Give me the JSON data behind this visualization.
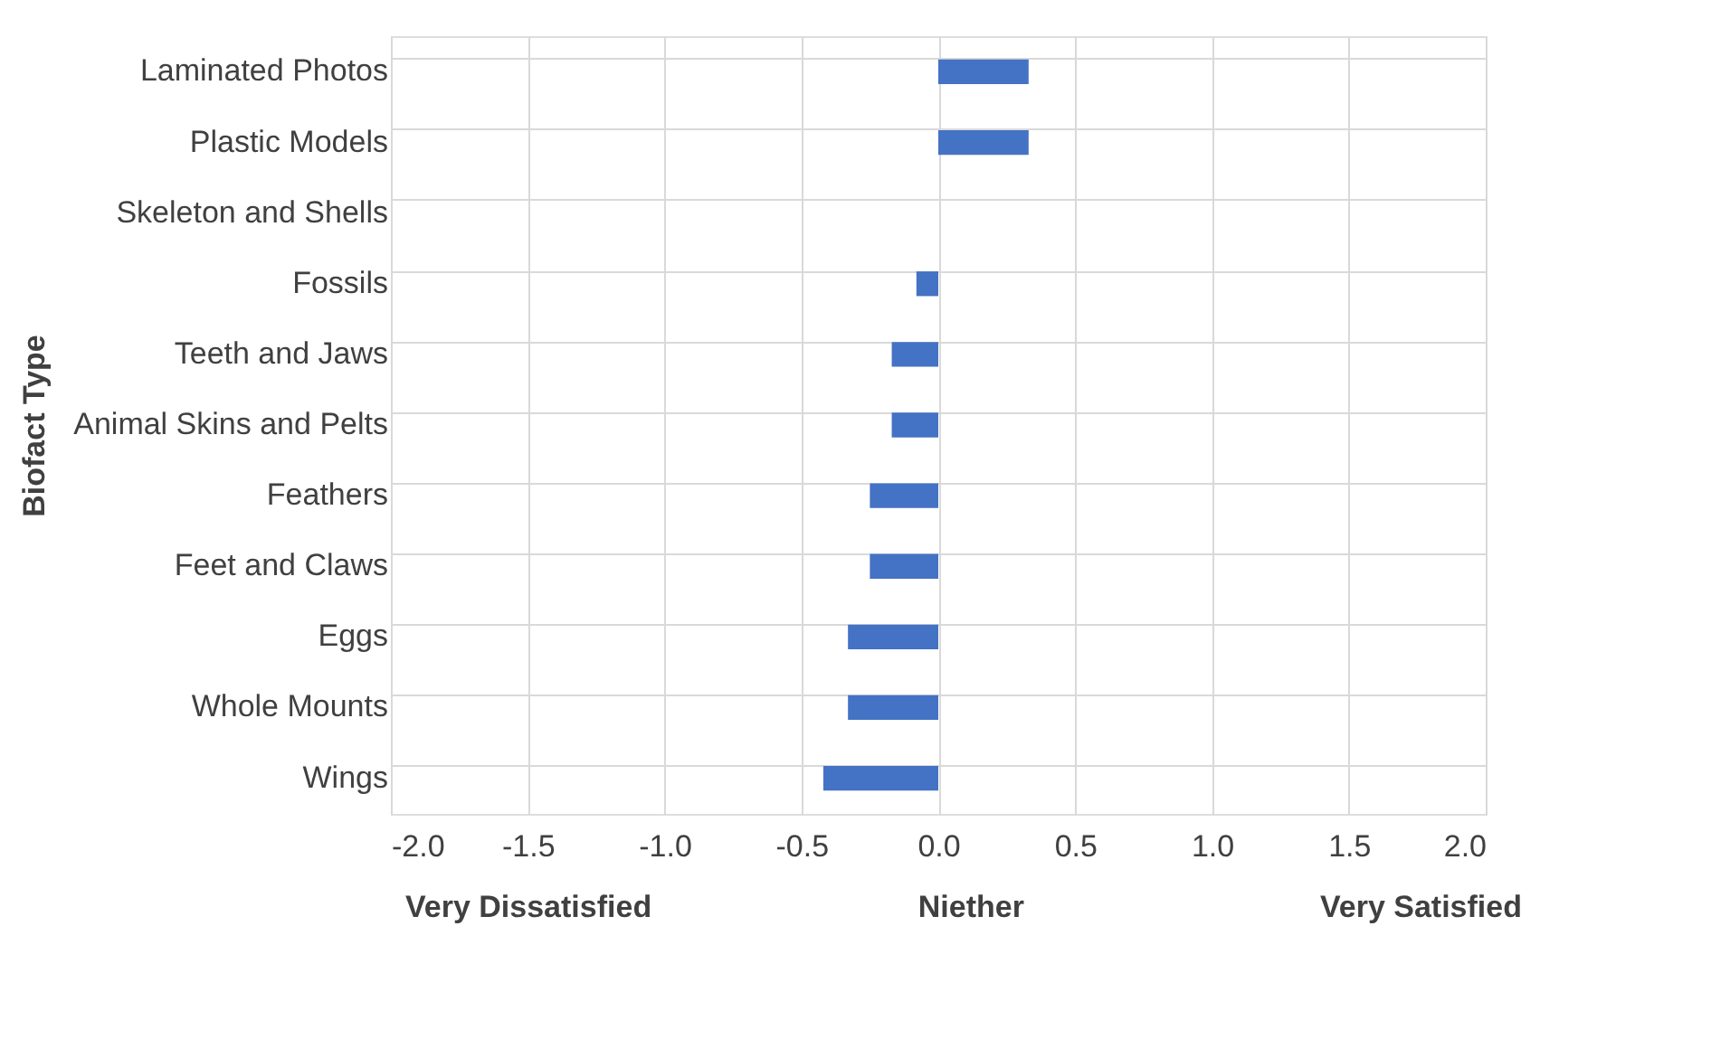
{
  "chart_data": {
    "type": "bar",
    "orientation": "horizontal",
    "ylabel": "Biofact Type",
    "categories": [
      "Laminated Photos",
      "Plastic Models",
      "Skeleton and Shells",
      "Fossils",
      "Teeth and Jaws",
      "Animal Skins and Pelts",
      "Feathers",
      "Feet and Claws",
      "Eggs",
      "Whole Mounts",
      "Wings"
    ],
    "values": [
      0.33,
      0.33,
      0,
      -0.08,
      -0.17,
      -0.17,
      -0.25,
      -0.25,
      -0.33,
      -0.33,
      -0.42
    ],
    "color": "#4472c4",
    "xlim": [
      -2.0,
      2.0
    ],
    "xticks": [
      {
        "value": -2,
        "label": "-2.0"
      },
      {
        "value": -1.5,
        "label": "-1.5"
      },
      {
        "value": -1,
        "label": "-1.0"
      },
      {
        "value": -0.5,
        "label": "-0.5"
      },
      {
        "value": 0,
        "label": "0.0"
      },
      {
        "value": 0.5,
        "label": "0.5"
      },
      {
        "value": 1,
        "label": "1.0"
      },
      {
        "value": 1.5,
        "label": "1.5"
      },
      {
        "value": 2,
        "label": "2.0"
      }
    ],
    "grid": true,
    "annotations": [
      "Very Dissatisfied",
      "Niether",
      "Very Satisfied"
    ]
  }
}
